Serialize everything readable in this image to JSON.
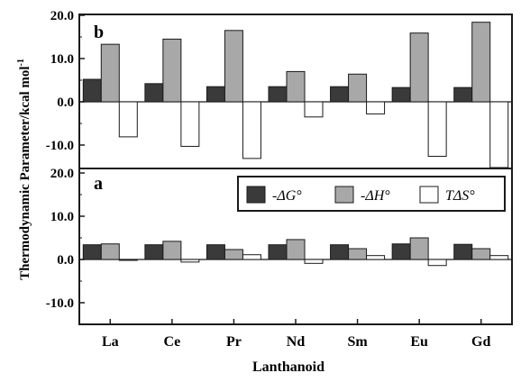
{
  "chart_data": [
    {
      "panel": "b",
      "type": "bar",
      "categories": [
        "La",
        "Ce",
        "Pr",
        "Nd",
        "Sm",
        "Eu",
        "Gd"
      ],
      "series": [
        {
          "name": "-ΔG°",
          "values": [
            5.2,
            4.2,
            3.5,
            3.5,
            3.5,
            3.3,
            3.3
          ]
        },
        {
          "name": "-ΔH°",
          "values": [
            13.3,
            14.5,
            16.5,
            7.0,
            6.4,
            15.9,
            18.4
          ]
        },
        {
          "name": "TΔS°",
          "values": [
            -8.1,
            -10.3,
            -13.1,
            -3.5,
            -2.8,
            -12.6,
            -15.2
          ]
        }
      ],
      "ylim": [
        -15,
        20
      ],
      "yticks": [
        "20.0",
        "10.0",
        "0.0",
        "-10.0"
      ],
      "grid": false
    },
    {
      "panel": "a",
      "type": "bar",
      "categories": [
        "La",
        "Ce",
        "Pr",
        "Nd",
        "Sm",
        "Eu",
        "Gd"
      ],
      "series": [
        {
          "name": "-ΔG°",
          "values": [
            3.4,
            3.4,
            3.4,
            3.4,
            3.4,
            3.6,
            3.5
          ]
        },
        {
          "name": "-ΔH°",
          "values": [
            3.6,
            4.2,
            2.3,
            4.6,
            2.5,
            5.0,
            2.5
          ]
        },
        {
          "name": "TΔS°",
          "values": [
            0,
            -0.6,
            1.1,
            -0.9,
            0.9,
            -1.4,
            0.9
          ]
        }
      ],
      "ylim": [
        -15,
        20
      ],
      "yticks": [
        "20.0",
        "10.0",
        "0.0",
        "-10.0"
      ],
      "grid": false
    }
  ],
  "labels": {
    "ylabel": "Thermodynamic Parameter/kcal mol",
    "ylabel_sup": "-1",
    "xlabel": "Lanthanoid",
    "panel_b": "b",
    "panel_a": "a",
    "legend_dg": "-ΔG°",
    "legend_dh": "-ΔH°",
    "legend_ts": "TΔS°"
  },
  "colors": {
    "dG": "#3a3a3a",
    "dH": "#a8a8a8",
    "TdS": "#ffffff",
    "axis": "#1a1a1a"
  }
}
